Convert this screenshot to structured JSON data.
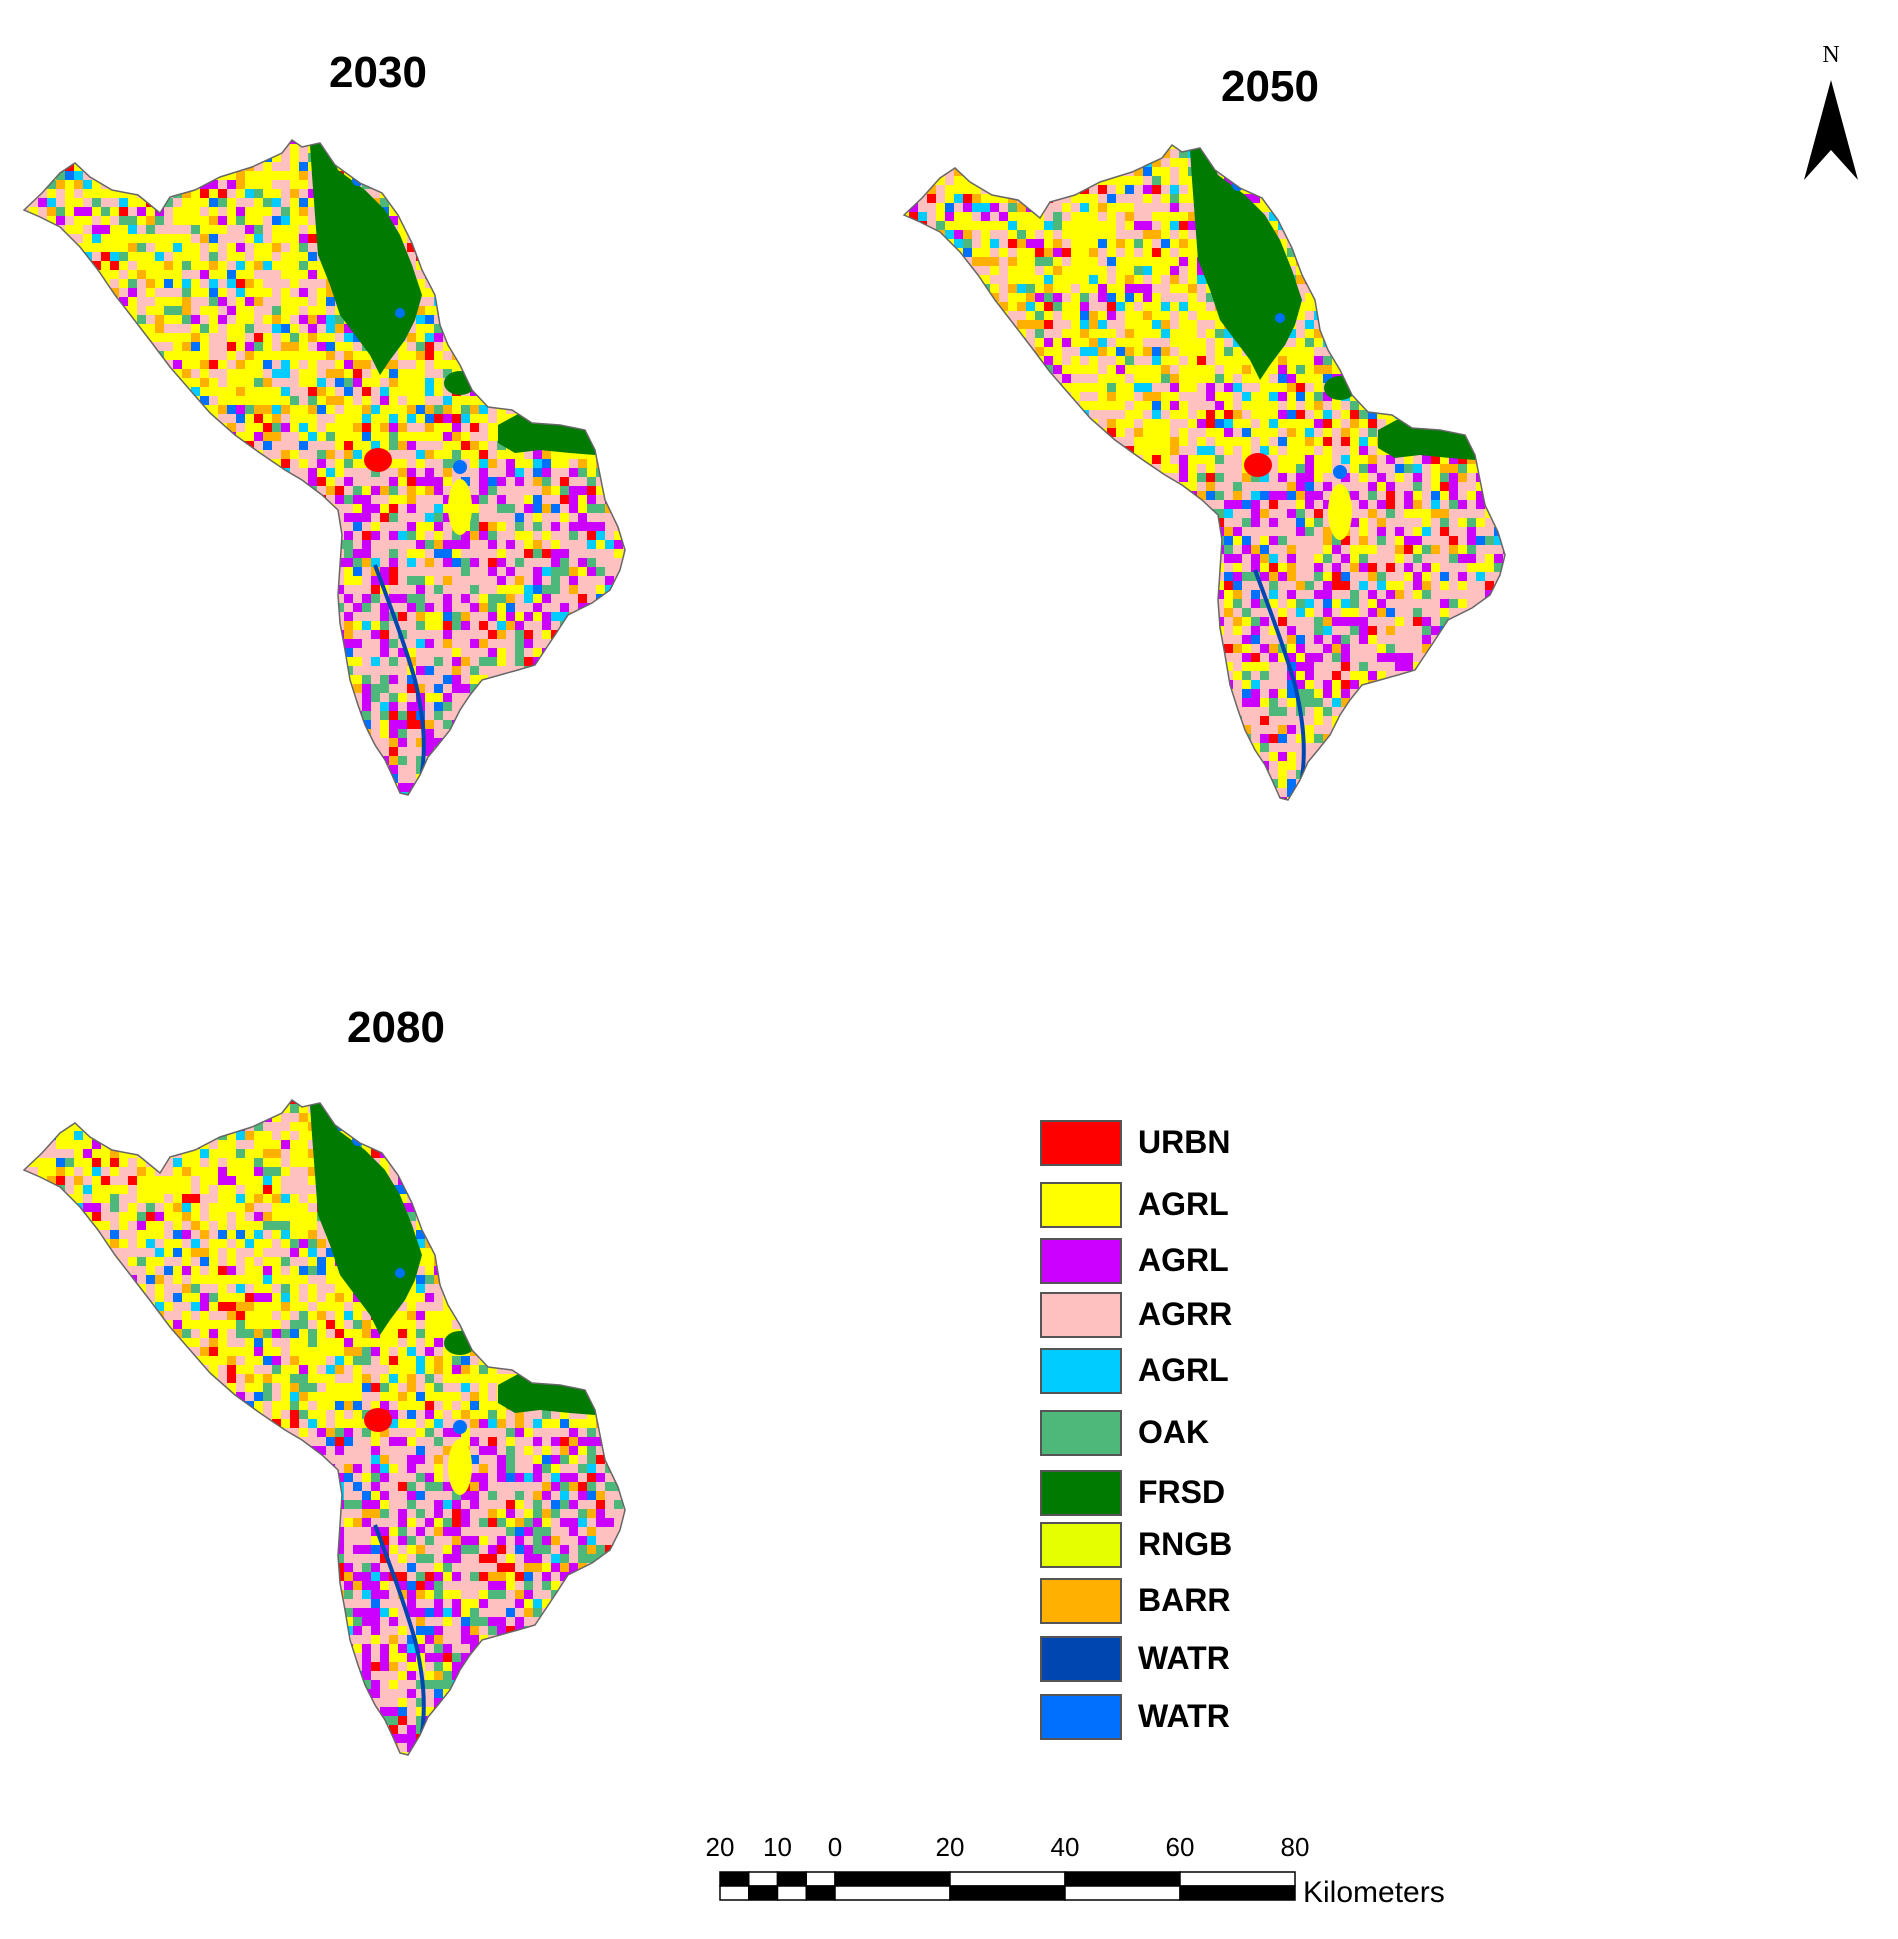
{
  "maps": [
    {
      "year": "2030"
    },
    {
      "year": "2050"
    },
    {
      "year": "2080"
    }
  ],
  "north_arrow": {
    "label": "N"
  },
  "legend": {
    "items": [
      {
        "label": "URBN",
        "color": "#ff0000"
      },
      {
        "label": "AGRL",
        "color": "#ffff00"
      },
      {
        "label": "AGRL",
        "color": "#cc00ff"
      },
      {
        "label": "AGRR",
        "color": "#ffc0c0"
      },
      {
        "label": "AGRL",
        "color": "#00ccff"
      },
      {
        "label": "OAK",
        "color": "#4db87a"
      },
      {
        "label": "FRSD",
        "color": "#007a00"
      },
      {
        "label": "RNGB",
        "color": "#e6ff00"
      },
      {
        "label": "BARR",
        "color": "#ffb000"
      },
      {
        "label": "WATR",
        "color": "#0046b0"
      },
      {
        "label": "WATR",
        "color": "#0070ff"
      }
    ]
  },
  "scale_bar": {
    "ticks": [
      "20",
      "10",
      "0",
      "20",
      "40",
      "60",
      "80"
    ],
    "unit": "Kilometers"
  }
}
